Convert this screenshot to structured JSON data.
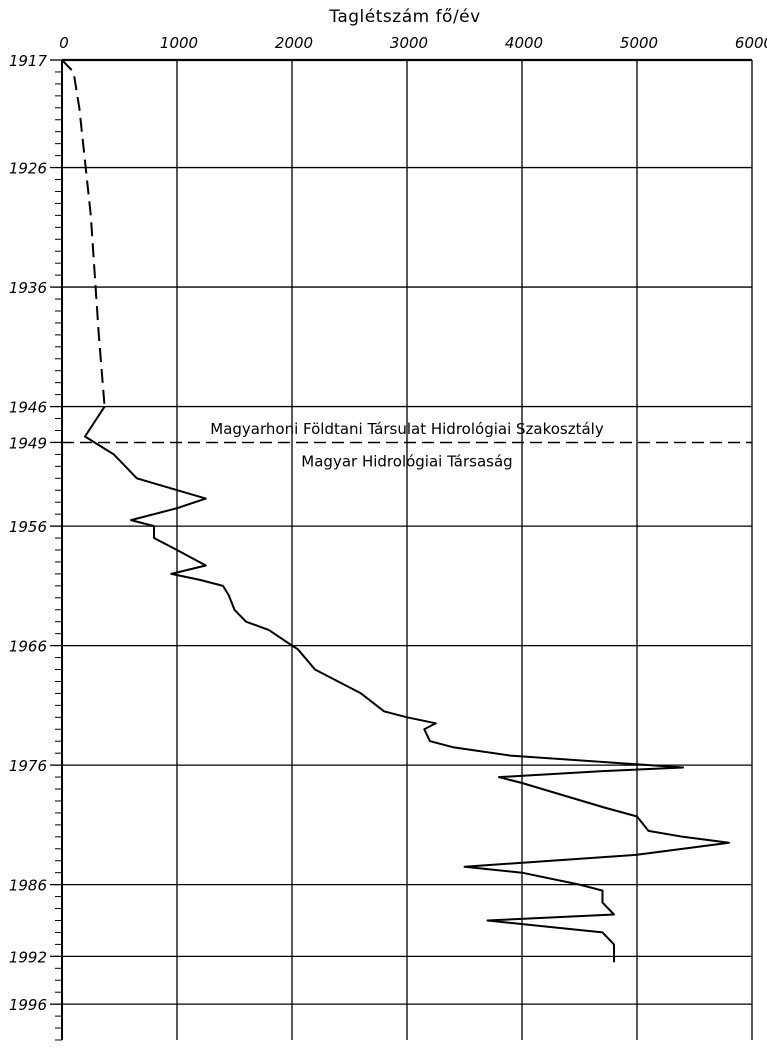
{
  "chart_data": {
    "type": "line",
    "title": "Taglétszám fő/év",
    "xlabel": "Taglétszám fő/év",
    "ylabel": "",
    "x_axis_position": "top",
    "xlim": [
      0,
      6000
    ],
    "ylim": [
      1917,
      1999
    ],
    "y_inverted": true,
    "grid": true,
    "x_ticks": [
      "0",
      "1000",
      "2000",
      "3000",
      "4000",
      "5000",
      "6000"
    ],
    "y_tick_labels": [
      "1917",
      "1926",
      "1936",
      "1946",
      "1949",
      "1956",
      "1966",
      "1976",
      "1986",
      "1992",
      "1996"
    ],
    "series": [
      {
        "style": "dashed",
        "points": [
          [
            0,
            1917
          ],
          [
            100,
            1918
          ],
          [
            150,
            1921
          ],
          [
            250,
            1930
          ],
          [
            320,
            1940
          ],
          [
            370,
            1946
          ]
        ]
      },
      {
        "style": "solid",
        "points": [
          [
            370,
            1946
          ],
          [
            200,
            1948.5
          ],
          [
            450,
            1950
          ],
          [
            550,
            1951
          ],
          [
            650,
            1952
          ],
          [
            1250,
            1953.7
          ],
          [
            1000,
            1954.5
          ],
          [
            600,
            1955.5
          ],
          [
            800,
            1956
          ],
          [
            800,
            1957
          ],
          [
            1000,
            1958
          ],
          [
            1250,
            1959.3
          ],
          [
            950,
            1960
          ],
          [
            1200,
            1960.5
          ],
          [
            1400,
            1961
          ],
          [
            1450,
            1961.8
          ],
          [
            1500,
            1963
          ],
          [
            1600,
            1964
          ],
          [
            1800,
            1964.7
          ],
          [
            2000,
            1966
          ],
          [
            2050,
            1966.3
          ],
          [
            2200,
            1968
          ],
          [
            2600,
            1970
          ],
          [
            2800,
            1971.5
          ],
          [
            3000,
            1972
          ],
          [
            3250,
            1972.5
          ],
          [
            3150,
            1973
          ],
          [
            3200,
            1974
          ],
          [
            3400,
            1974.5
          ],
          [
            3900,
            1975.2
          ],
          [
            4800,
            1975.8
          ],
          [
            5400,
            1976.2
          ],
          [
            4700,
            1976.5
          ],
          [
            3800,
            1977
          ],
          [
            4000,
            1977.5
          ],
          [
            4700,
            1979.5
          ],
          [
            5000,
            1980.3
          ],
          [
            5100,
            1981.5
          ],
          [
            5400,
            1982
          ],
          [
            5800,
            1982.5
          ],
          [
            5000,
            1983.5
          ],
          [
            3500,
            1984.5
          ],
          [
            4000,
            1985
          ],
          [
            4500,
            1986
          ],
          [
            4700,
            1986.5
          ],
          [
            4700,
            1987.5
          ],
          [
            4800,
            1988.5
          ],
          [
            3700,
            1989
          ],
          [
            4700,
            1990
          ],
          [
            4800,
            1991
          ],
          [
            4800,
            1992.5
          ]
        ]
      }
    ],
    "annotations": [
      {
        "text": "Magyarhoni Földtani Társulat Hidrológiai Szakosztály",
        "x": 3000,
        "y": 1948.3
      },
      {
        "text": "Magyar Hidrológiai Társaság",
        "x": 3000,
        "y": 1951
      }
    ],
    "hline": {
      "y": 1949,
      "style": "dashed"
    }
  }
}
